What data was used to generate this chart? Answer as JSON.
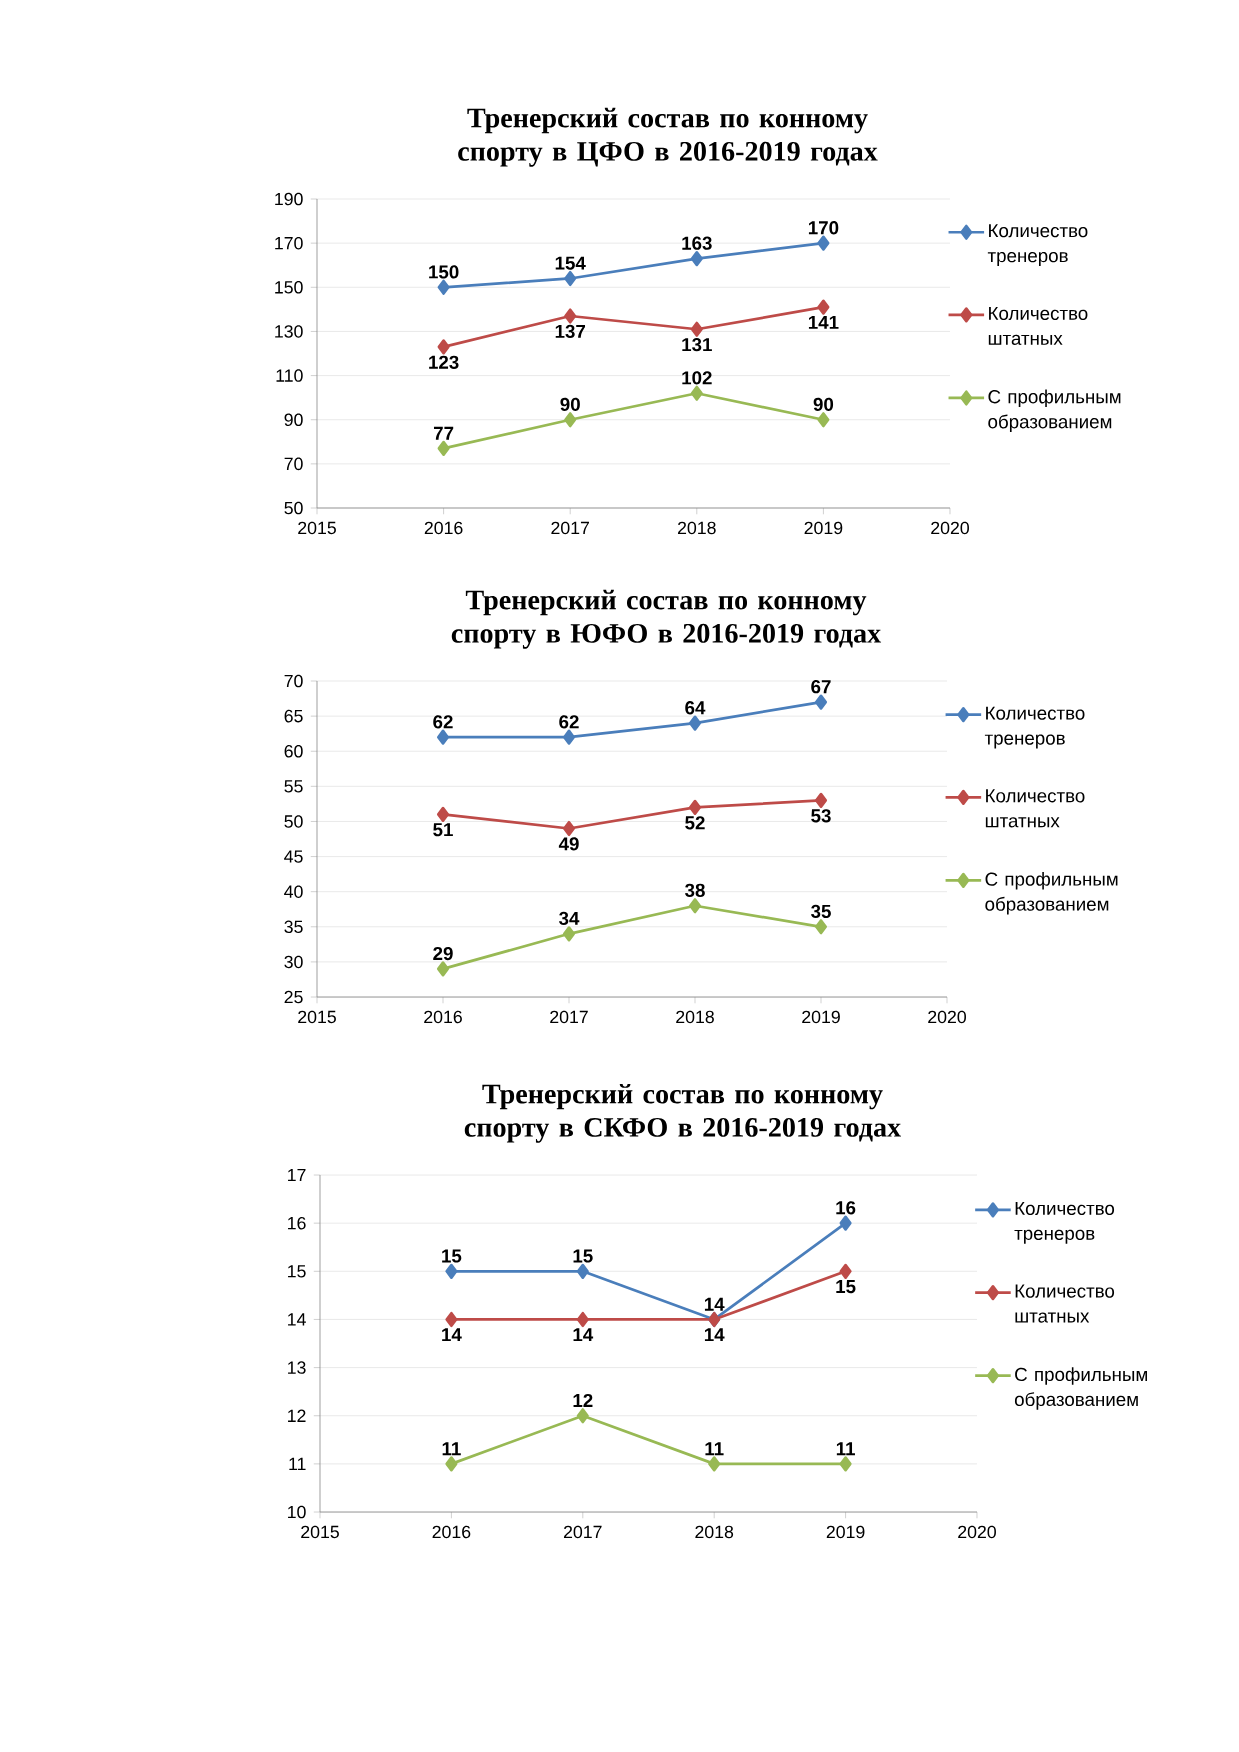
{
  "chart_data": [
    {
      "type": "line",
      "title": "Тренерский состав по конному спорту в ЦФО в 2016-2019 годах",
      "x": [
        2016,
        2017,
        2018,
        2019
      ],
      "series": [
        {
          "name": "Количество тренеров",
          "color": "#4a7ebb",
          "values": [
            150,
            154,
            163,
            170
          ]
        },
        {
          "name": "Количество штатных",
          "color": "#be4b48",
          "values": [
            123,
            137,
            131,
            141
          ]
        },
        {
          "name": "С профильным образованием",
          "color": "#98b954",
          "values": [
            77,
            90,
            102,
            90
          ]
        }
      ],
      "xlim": [
        2015,
        2020
      ],
      "xticks": [
        2015,
        2016,
        2017,
        2018,
        2019,
        2020
      ],
      "ylim": [
        50,
        190
      ],
      "yticks": [
        50,
        70,
        90,
        110,
        130,
        150,
        170,
        190
      ],
      "grid": "y",
      "legend": "right",
      "marker": "diamond",
      "data_labels": true
    },
    {
      "type": "line",
      "title": "Тренерский состав по конному спорту в ЮФО в 2016-2019 годах",
      "x": [
        2016,
        2017,
        2018,
        2019
      ],
      "series": [
        {
          "name": "Количество тренеров",
          "color": "#4a7ebb",
          "values": [
            62,
            62,
            64,
            67
          ]
        },
        {
          "name": "Количество штатных",
          "color": "#be4b48",
          "values": [
            51,
            49,
            52,
            53
          ]
        },
        {
          "name": "С профильным образованием",
          "color": "#98b954",
          "values": [
            29,
            34,
            38,
            35
          ]
        }
      ],
      "xlim": [
        2015,
        2020
      ],
      "xticks": [
        2015,
        2016,
        2017,
        2018,
        2019,
        2020
      ],
      "ylim": [
        25,
        70
      ],
      "yticks": [
        25,
        30,
        35,
        40,
        45,
        50,
        55,
        60,
        65,
        70
      ],
      "grid": "y",
      "legend": "right",
      "marker": "diamond",
      "data_labels": true
    },
    {
      "type": "line",
      "title": "Тренерский состав по конному спорту в СКФО в 2016-2019 годах",
      "x": [
        2016,
        2017,
        2018,
        2019
      ],
      "series": [
        {
          "name": "Количество тренеров",
          "color": "#4a7ebb",
          "values": [
            15,
            15,
            14,
            16
          ]
        },
        {
          "name": "Количество штатных",
          "color": "#be4b48",
          "values": [
            14,
            14,
            14,
            15
          ]
        },
        {
          "name": "С профильным образованием",
          "color": "#98b954",
          "values": [
            11,
            12,
            11,
            11
          ]
        }
      ],
      "xlim": [
        2015,
        2020
      ],
      "xticks": [
        2015,
        2016,
        2017,
        2018,
        2019,
        2020
      ],
      "ylim": [
        10,
        17
      ],
      "yticks": [
        10,
        11,
        12,
        13,
        14,
        15,
        16,
        17
      ],
      "grid": "y",
      "legend": "right",
      "marker": "diamond",
      "data_labels": true
    }
  ]
}
